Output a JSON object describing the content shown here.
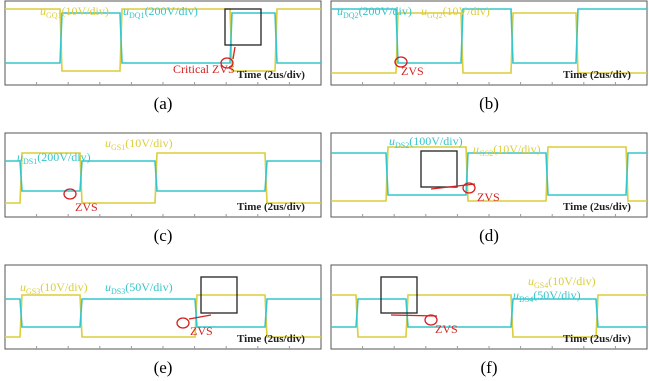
{
  "panels": [
    {
      "caption": "(a)",
      "labels": [
        {
          "symbol": "u",
          "sub": "GQ1",
          "scale": "(10V/div)"
        },
        {
          "symbol": "u",
          "sub": "DQ1",
          "scale": "(200V/div)"
        }
      ],
      "zvs": "Critical ZVS",
      "time": "Time (2us/div)"
    },
    {
      "caption": "(b)",
      "labels": [
        {
          "symbol": "u",
          "sub": "DQ2",
          "scale": "(200V/div)"
        },
        {
          "symbol": "u",
          "sub": "GQ2",
          "scale": "(10V/div)"
        }
      ],
      "zvs": "ZVS",
      "time": "Time (2us/div)"
    },
    {
      "caption": "(c)",
      "labels": [
        {
          "symbol": "u",
          "sub": "DS1",
          "scale": "(200V/div)"
        },
        {
          "symbol": "u",
          "sub": "GS1",
          "scale": "(10V/div)"
        }
      ],
      "zvs": "ZVS",
      "time": "Time (2us/div)"
    },
    {
      "caption": "(d)",
      "labels": [
        {
          "symbol": "u",
          "sub": "DS2",
          "scale": "(100V/div)"
        },
        {
          "symbol": "u",
          "sub": "GS2",
          "scale": "(10V/div)"
        }
      ],
      "zvs": "ZVS",
      "time": "Time (2us/div)"
    },
    {
      "caption": "(e)",
      "labels": [
        {
          "symbol": "u",
          "sub": "GS3",
          "scale": "(10V/div)"
        },
        {
          "symbol": "u",
          "sub": "DS3",
          "scale": "(50V/div)"
        }
      ],
      "zvs": "ZVS",
      "time": "Time (2us/div)"
    },
    {
      "caption": "(f)",
      "labels": [
        {
          "symbol": "u",
          "sub": "GS4",
          "scale": "(10V/div)"
        },
        {
          "symbol": "u",
          "sub": "DS4",
          "scale": "(50V/div)"
        }
      ],
      "zvs": "ZVS",
      "time": "Time (2us/div)"
    }
  ]
}
